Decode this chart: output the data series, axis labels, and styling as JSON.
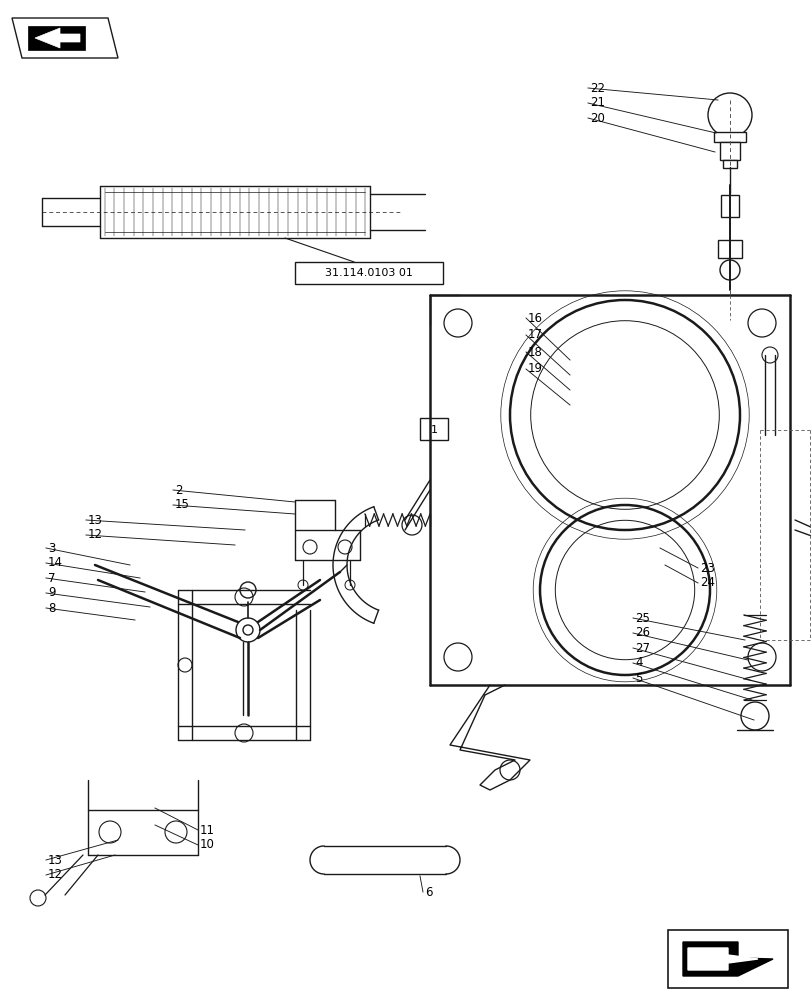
{
  "bg_color": "#ffffff",
  "fig_width": 8.12,
  "fig_height": 10.0,
  "dpi": 100,
  "line_color": "#1a1a1a",
  "lw_main": 1.0,
  "lw_thin": 0.6,
  "lw_thick": 1.8,
  "fontsize": 8.0,
  "ref_label": "31.114.0103 01"
}
